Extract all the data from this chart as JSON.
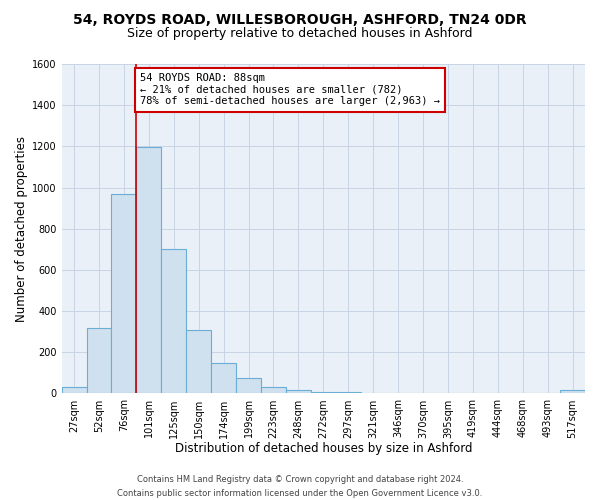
{
  "title": "54, ROYDS ROAD, WILLESBOROUGH, ASHFORD, TN24 0DR",
  "subtitle": "Size of property relative to detached houses in Ashford",
  "xlabel": "Distribution of detached houses by size in Ashford",
  "ylabel": "Number of detached properties",
  "categories": [
    "27sqm",
    "52sqm",
    "76sqm",
    "101sqm",
    "125sqm",
    "150sqm",
    "174sqm",
    "199sqm",
    "223sqm",
    "248sqm",
    "272sqm",
    "297sqm",
    "321sqm",
    "346sqm",
    "370sqm",
    "395sqm",
    "419sqm",
    "444sqm",
    "468sqm",
    "493sqm",
    "517sqm"
  ],
  "values": [
    30,
    320,
    970,
    1195,
    700,
    310,
    150,
    75,
    30,
    15,
    5,
    5,
    0,
    0,
    0,
    0,
    0,
    0,
    0,
    0,
    15
  ],
  "bar_color": "#cfe0ef",
  "bar_edge_color": "#6aaed6",
  "background_color": "#ffffff",
  "plot_bg_color": "#eaf0f8",
  "grid_color": "#c8d4e4",
  "vline_x": 2.5,
  "vline_color": "#cc0000",
  "annotation_box_edge_color": "#cc0000",
  "marker_label": "54 ROYDS ROAD: 88sqm",
  "annotation_line1": "← 21% of detached houses are smaller (782)",
  "annotation_line2": "78% of semi-detached houses are larger (2,963) →",
  "ylim": [
    0,
    1600
  ],
  "yticks": [
    0,
    200,
    400,
    600,
    800,
    1000,
    1200,
    1400,
    1600
  ],
  "footer_line1": "Contains HM Land Registry data © Crown copyright and database right 2024.",
  "footer_line2": "Contains public sector information licensed under the Open Government Licence v3.0.",
  "title_fontsize": 10,
  "subtitle_fontsize": 9,
  "axis_label_fontsize": 8.5,
  "tick_fontsize": 7,
  "annotation_fontsize": 7.5,
  "footer_fontsize": 6
}
